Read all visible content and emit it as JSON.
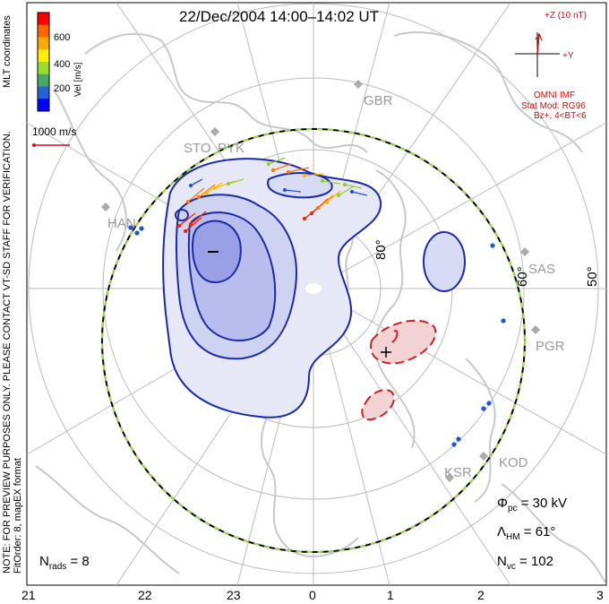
{
  "title": "22/Dec/2004  14:00–14:02 UT",
  "coords_label": "MLT coordinates",
  "note": "NOTE: FOR PREVIEW PURPOSES ONLY. PLEASE CONTACT VT-SD STAFF FOR VERIFICATION.",
  "fit_order": "FitOrder: 8, mapEX format",
  "velocity_scale": {
    "title": "Vel [m/s]",
    "ticks": [
      "600",
      "400",
      "200"
    ],
    "colors": [
      "#ff0000",
      "#ff6600",
      "#ffaa00",
      "#ffee00",
      "#99dd33",
      "#44aa66",
      "#2266cc",
      "#0000ff"
    ]
  },
  "reference_vector": "1000 m/s",
  "imf": {
    "z_label": "+Z (10 nT)",
    "y_label": "+Y",
    "source": "OMNI IMF",
    "model": "Stat Mod: RG96",
    "condition": "Bz+, 4<BT<6"
  },
  "stats": {
    "phi_pc": "= 30 kV",
    "lambda_hm": "= 61°",
    "n_vc": "= 102",
    "n_rads": "= 8"
  },
  "latitude_labels": [
    "80°",
    "60°",
    "50°"
  ],
  "mlt_ticks": [
    "21",
    "22",
    "23",
    "0",
    "1",
    "2",
    "3"
  ],
  "stations": [
    "GBR",
    "STO",
    "PYK",
    "HAN",
    "SAS",
    "PGR",
    "KOD",
    "KSR"
  ],
  "colors": {
    "contour_neg": "#1a2aa8",
    "contour_pos": "#cc2222",
    "map_land": "#c8c8c8",
    "grid": "#b8b8b8",
    "hm_boundary_dash": "#9edb4a"
  }
}
